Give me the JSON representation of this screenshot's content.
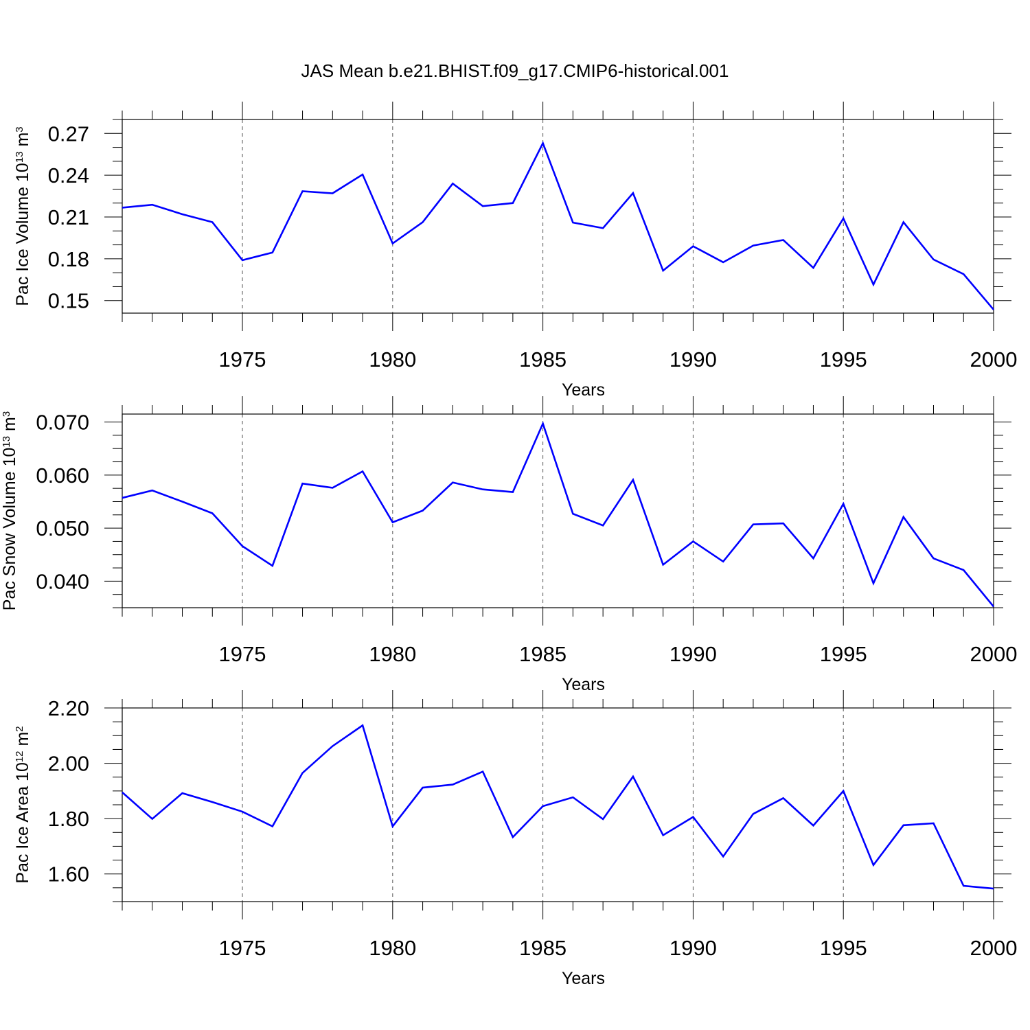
{
  "title": "JAS Mean b.e21.BHIST.f09_g17.CMIP6-historical.001",
  "line_color": "#0000ff",
  "chart_data": [
    {
      "type": "line",
      "title": "",
      "xlabel": "Years",
      "ylabel": {
        "prefix": "Pac Ice Volume 10",
        "exp": "13",
        "unit": " m",
        "unit_exp": "3"
      },
      "xlim": [
        1971,
        2000
      ],
      "ylim": [
        0.141,
        0.28
      ],
      "x_ticks": [
        1975,
        1980,
        1985,
        1990,
        1995,
        2000
      ],
      "y_ticks": [
        0.15,
        0.18,
        0.21,
        0.24,
        0.27
      ],
      "y_tick_labels": [
        "0.15",
        "0.18",
        "0.21",
        "0.24",
        "0.27"
      ],
      "y_minor_step": 0.01,
      "grid": "vertical-dashed",
      "x": [
        1971,
        1972,
        1973,
        1974,
        1975,
        1976,
        1977,
        1978,
        1979,
        1980,
        1981,
        1982,
        1983,
        1984,
        1985,
        1986,
        1987,
        1988,
        1989,
        1990,
        1991,
        1992,
        1993,
        1994,
        1995,
        1996,
        1997,
        1998,
        1999,
        2000
      ],
      "series": [
        {
          "values": [
            0.2167,
            0.2188,
            0.212,
            0.2063,
            0.179,
            0.1845,
            0.2285,
            0.227,
            0.2405,
            0.191,
            0.2063,
            0.234,
            0.2178,
            0.22,
            0.263,
            0.206,
            0.202,
            0.2272,
            0.1715,
            0.189,
            0.1775,
            0.1895,
            0.1935,
            0.1735,
            0.209,
            0.1615,
            0.2063,
            0.1795,
            0.169,
            0.1435
          ]
        }
      ]
    },
    {
      "type": "line",
      "title": "",
      "xlabel": "Years",
      "ylabel": {
        "prefix": "Pac Snow Volume 10",
        "exp": "13",
        "unit": " m",
        "unit_exp": "3"
      },
      "xlim": [
        1971,
        2000
      ],
      "ylim": [
        0.035,
        0.0715
      ],
      "x_ticks": [
        1975,
        1980,
        1985,
        1990,
        1995,
        2000
      ],
      "y_ticks": [
        0.04,
        0.05,
        0.06,
        0.07
      ],
      "y_tick_labels": [
        "0.040",
        "0.050",
        "0.060",
        "0.070"
      ],
      "y_minor_step": 0.0025,
      "grid": "vertical-dashed",
      "x": [
        1971,
        1972,
        1973,
        1974,
        1975,
        1976,
        1977,
        1978,
        1979,
        1980,
        1981,
        1982,
        1983,
        1984,
        1985,
        1986,
        1987,
        1988,
        1989,
        1990,
        1991,
        1992,
        1993,
        1994,
        1995,
        1996,
        1997,
        1998,
        1999,
        2000
      ],
      "series": [
        {
          "values": [
            0.0557,
            0.0571,
            0.055,
            0.0528,
            0.0466,
            0.0429,
            0.0584,
            0.0576,
            0.0607,
            0.0511,
            0.0533,
            0.0586,
            0.0573,
            0.0568,
            0.0697,
            0.0527,
            0.0505,
            0.0591,
            0.0431,
            0.0475,
            0.0437,
            0.0507,
            0.0509,
            0.0443,
            0.0546,
            0.0396,
            0.0521,
            0.0443,
            0.0421,
            0.0352
          ]
        }
      ]
    },
    {
      "type": "line",
      "title": "",
      "xlabel": "Years",
      "ylabel": {
        "prefix": "Pac Ice Area 10",
        "exp": "12",
        "unit": " m",
        "unit_exp": "2"
      },
      "xlim": [
        1971,
        2000
      ],
      "ylim": [
        1.5,
        2.2
      ],
      "x_ticks": [
        1975,
        1980,
        1985,
        1990,
        1995,
        2000
      ],
      "y_ticks": [
        1.6,
        1.8,
        2.0,
        2.2
      ],
      "y_tick_labels": [
        "1.60",
        "1.80",
        "2.00",
        "2.20"
      ],
      "y_minor_step": 0.05,
      "grid": "vertical-dashed",
      "x": [
        1971,
        1972,
        1973,
        1974,
        1975,
        1976,
        1977,
        1978,
        1979,
        1980,
        1981,
        1982,
        1983,
        1984,
        1985,
        1986,
        1987,
        1988,
        1989,
        1990,
        1991,
        1992,
        1993,
        1994,
        1995,
        1996,
        1997,
        1998,
        1999,
        2000
      ],
      "series": [
        {
          "values": [
            1.895,
            1.799,
            1.892,
            1.86,
            1.825,
            1.772,
            1.965,
            2.062,
            2.137,
            1.772,
            1.912,
            1.923,
            1.97,
            1.733,
            1.845,
            1.877,
            1.798,
            1.952,
            1.74,
            1.806,
            1.663,
            1.817,
            1.874,
            1.775,
            1.9,
            1.632,
            1.776,
            1.783,
            1.557,
            1.547
          ]
        }
      ]
    }
  ]
}
